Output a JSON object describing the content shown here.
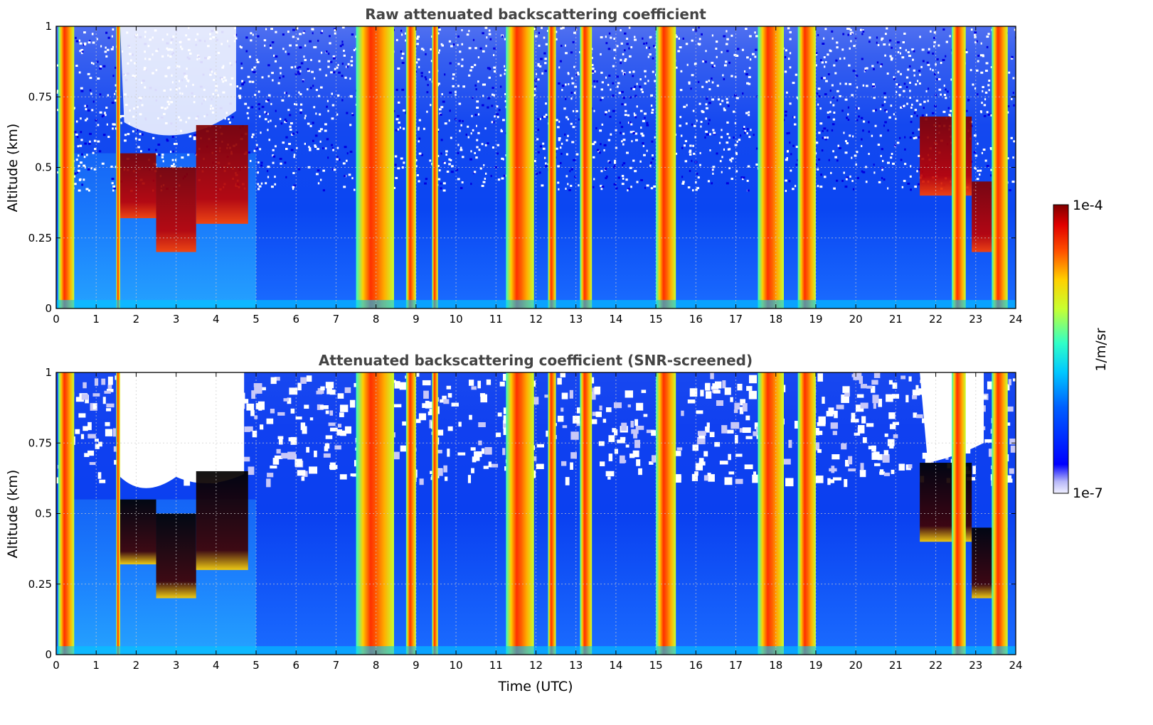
{
  "chart_data": [
    {
      "type": "heatmap",
      "title": "Raw attenuated backscattering coefficient",
      "xlabel": "",
      "ylabel": "Altitude (km)",
      "xlim": [
        0,
        24
      ],
      "ylim": [
        0,
        1
      ],
      "x_ticks": [
        "0",
        "1",
        "2",
        "3",
        "4",
        "5",
        "6",
        "7",
        "8",
        "9",
        "10",
        "11",
        "12",
        "13",
        "14",
        "15",
        "16",
        "17",
        "18",
        "19",
        "20",
        "21",
        "22",
        "23",
        "24"
      ],
      "y_ticks": [
        "0",
        "0.25",
        "0.5",
        "0.75",
        "1"
      ],
      "grid": true,
      "screened": false
    },
    {
      "type": "heatmap",
      "title": "Attenuated backscattering coefficient (SNR-screened)",
      "xlabel": "Time (UTC)",
      "ylabel": "Altitude (km)",
      "xlim": [
        0,
        24
      ],
      "ylim": [
        0,
        1
      ],
      "x_ticks": [
        "0",
        "1",
        "2",
        "3",
        "4",
        "5",
        "6",
        "7",
        "8",
        "9",
        "10",
        "11",
        "12",
        "13",
        "14",
        "15",
        "16",
        "17",
        "18",
        "19",
        "20",
        "21",
        "22",
        "23",
        "24"
      ],
      "y_ticks": [
        "0",
        "0.25",
        "0.5",
        "0.75",
        "1"
      ],
      "grid": true,
      "screened": true
    }
  ],
  "precipitation_bands": [
    {
      "start": 0.05,
      "end": 0.45
    },
    {
      "start": 1.5,
      "end": 1.6
    },
    {
      "start": 7.5,
      "end": 8.45
    },
    {
      "start": 8.75,
      "end": 9.0
    },
    {
      "start": 9.4,
      "end": 9.55
    },
    {
      "start": 11.25,
      "end": 11.95
    },
    {
      "start": 12.3,
      "end": 12.5
    },
    {
      "start": 13.1,
      "end": 13.4
    },
    {
      "start": 15.0,
      "end": 15.5
    },
    {
      "start": 17.55,
      "end": 18.2
    },
    {
      "start": 18.55,
      "end": 19.0
    },
    {
      "start": 22.4,
      "end": 22.75
    },
    {
      "start": 23.4,
      "end": 23.8
    }
  ],
  "cloud_layers": [
    {
      "start": 1.5,
      "end": 2.5,
      "base": 0.32,
      "top": 0.55
    },
    {
      "start": 2.5,
      "end": 3.5,
      "base": 0.2,
      "top": 0.5
    },
    {
      "start": 3.5,
      "end": 4.8,
      "base": 0.3,
      "top": 0.65
    },
    {
      "start": 21.6,
      "end": 22.9,
      "base": 0.4,
      "top": 0.68
    },
    {
      "start": 22.9,
      "end": 23.8,
      "base": 0.2,
      "top": 0.45
    }
  ],
  "colorbar": {
    "label": "1/m/sr",
    "max_label": "1e-4",
    "min_label": "1e-7",
    "colormap": "jet",
    "scale": "log"
  }
}
